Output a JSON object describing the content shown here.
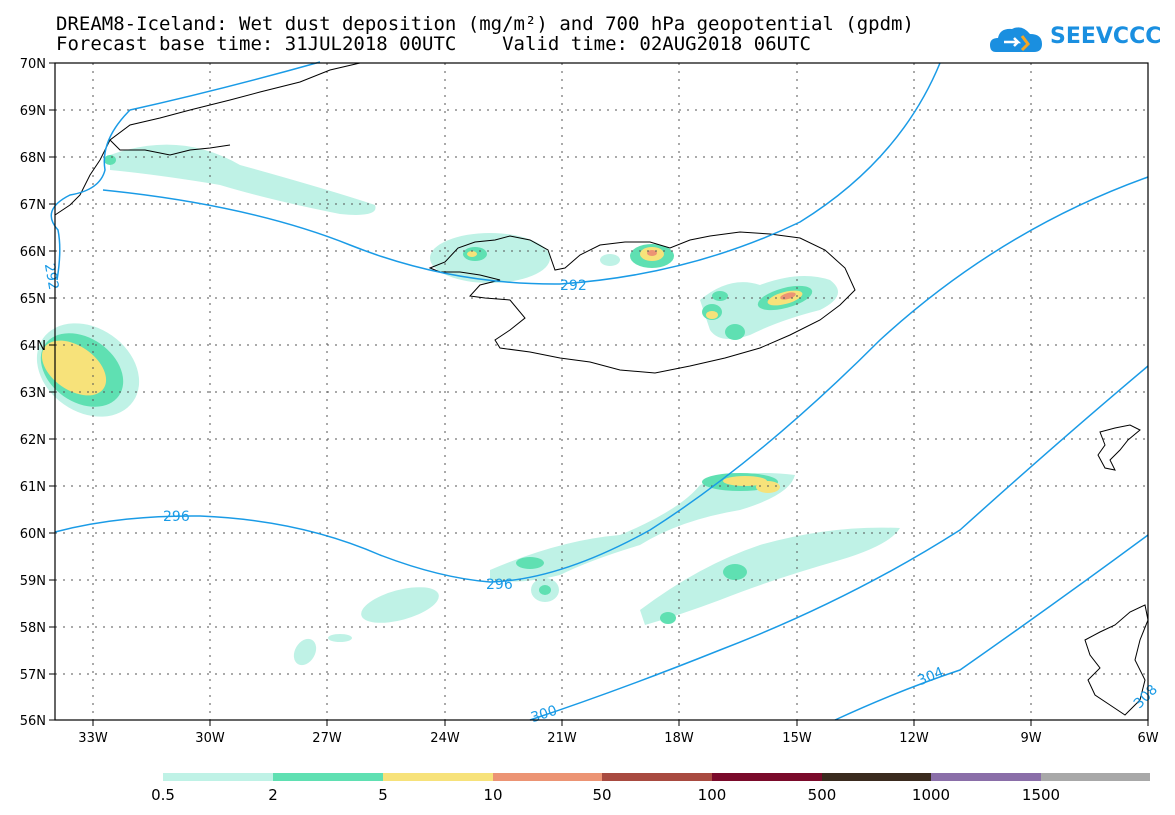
{
  "header": {
    "title_line1": "DREAM8-Iceland: Wet dust deposition (mg/m²) and 700 hPa geopotential (gpdm)",
    "title_line2": "Forecast base time: 31JUL2018 00UTC    Valid time: 02AUG2018 06UTC",
    "logo_text": "SEEVCCC"
  },
  "map": {
    "lat_labels": [
      "70N",
      "69N",
      "68N",
      "67N",
      "66N",
      "65N",
      "64N",
      "63N",
      "62N",
      "61N",
      "60N",
      "59N",
      "58N",
      "57N",
      "56N"
    ],
    "lon_labels": [
      "33W",
      "30W",
      "27W",
      "24W",
      "21W",
      "18W",
      "15W",
      "12W",
      "9W",
      "6W"
    ],
    "contour_labels": [
      "292",
      "292",
      "296",
      "296",
      "300",
      "304",
      "308"
    ],
    "contour_color": "#1a9be6",
    "coast_color": "#000000"
  },
  "legend": {
    "labels": [
      "0.5",
      "2",
      "5",
      "10",
      "50",
      "100",
      "500",
      "1000",
      "1500"
    ],
    "colors": [
      "#bff2e6",
      "#5fe0b2",
      "#f7e27a",
      "#ec9474",
      "#a84a40",
      "#7a0a2a",
      "#3a2a1e",
      "#8a6ea8",
      "#a8a8a8"
    ]
  }
}
